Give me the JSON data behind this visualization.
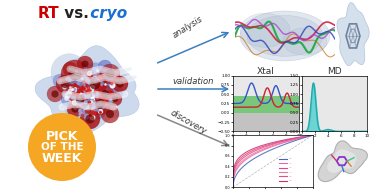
{
  "title_RT": "RT",
  "title_vs": " vs.",
  "title_cryo": " cryo",
  "title_RT_color": "#cc0000",
  "title_vs_color": "#222222",
  "title_cryo_color": "#1a6fd4",
  "arrow_color": "#3a7fc1",
  "arrow_gray_color": "#888888",
  "badge_color": "#f5a623",
  "badge_text_color": "#ffffff",
  "xtal_title": "Xtal",
  "md_title": "MD",
  "bg_color": "#ffffff"
}
